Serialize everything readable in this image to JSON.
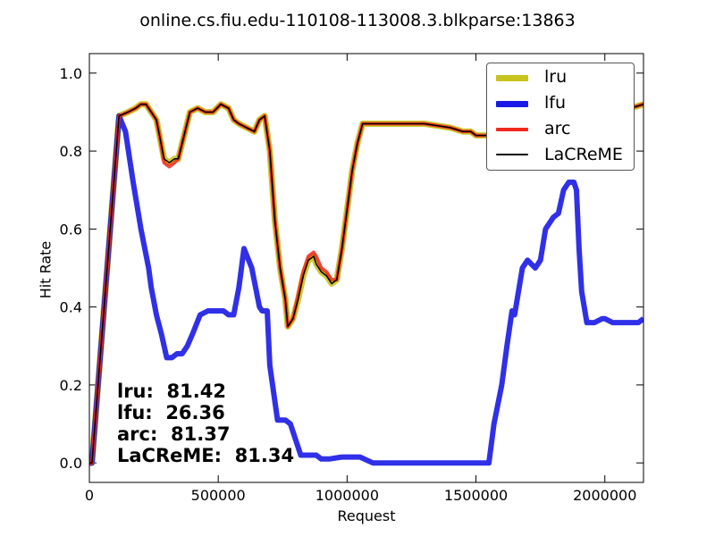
{
  "chart_data": {
    "type": "line",
    "title": "online.cs.fiu.edu-110108-113008.3.blkparse:13863",
    "xlabel": "Request",
    "ylabel": "Hit Rate",
    "xlim": [
      0,
      2150000
    ],
    "ylim": [
      -0.05,
      1.05
    ],
    "xticks": [
      0,
      500000,
      1000000,
      1500000,
      2000000
    ],
    "xtick_labels": [
      "0",
      "500000",
      "1000000",
      "1500000",
      "2000000"
    ],
    "yticks": [
      0.0,
      0.2,
      0.4,
      0.6,
      0.8,
      1.0
    ],
    "ytick_labels": [
      "0.0",
      "0.2",
      "0.4",
      "0.6",
      "0.8",
      "1.0"
    ],
    "grid": false,
    "legend_position": "top-right",
    "series": [
      {
        "name": "lru",
        "color": "#c8c31e",
        "x": [
          0,
          10000,
          115000,
          150000,
          180000,
          200000,
          220000,
          240000,
          260000,
          275000,
          290000,
          310000,
          330000,
          345000,
          360000,
          390000,
          420000,
          450000,
          480000,
          510000,
          540000,
          560000,
          580000,
          610000,
          640000,
          660000,
          680000,
          700000,
          720000,
          740000,
          760000,
          770000,
          790000,
          810000,
          830000,
          850000,
          870000,
          880000,
          900000,
          920000,
          940000,
          960000,
          980000,
          1000000,
          1020000,
          1040000,
          1060000,
          1100000,
          1200000,
          1300000,
          1400000,
          1450000,
          1480000,
          1500000,
          1520000,
          1550000,
          1600000,
          1650000,
          1700000,
          1750000,
          1800000,
          1850000,
          1900000,
          1950000,
          2000000,
          2050000,
          2100000,
          2150000
        ],
        "y": [
          0.0,
          0.0,
          0.89,
          0.9,
          0.91,
          0.92,
          0.92,
          0.9,
          0.88,
          0.83,
          0.78,
          0.77,
          0.78,
          0.78,
          0.82,
          0.9,
          0.91,
          0.9,
          0.9,
          0.92,
          0.91,
          0.88,
          0.87,
          0.86,
          0.85,
          0.88,
          0.89,
          0.8,
          0.62,
          0.5,
          0.42,
          0.35,
          0.37,
          0.42,
          0.48,
          0.52,
          0.53,
          0.51,
          0.49,
          0.48,
          0.46,
          0.47,
          0.55,
          0.65,
          0.75,
          0.82,
          0.87,
          0.87,
          0.87,
          0.87,
          0.86,
          0.85,
          0.85,
          0.84,
          0.84,
          0.84,
          0.85,
          0.88,
          0.89,
          0.9,
          0.91,
          0.91,
          0.91,
          0.91,
          0.91,
          0.91,
          0.91,
          0.92
        ]
      },
      {
        "name": "lfu",
        "color": "#1a1ae6",
        "x": [
          0,
          10000,
          115000,
          140000,
          170000,
          200000,
          230000,
          240000,
          260000,
          280000,
          300000,
          320000,
          340000,
          360000,
          380000,
          400000,
          430000,
          460000,
          490000,
          520000,
          540000,
          560000,
          580000,
          600000,
          630000,
          660000,
          670000,
          690000,
          700000,
          730000,
          760000,
          780000,
          820000,
          860000,
          880000,
          900000,
          930000,
          980000,
          1050000,
          1100000,
          1200000,
          1300000,
          1400000,
          1470000,
          1500000,
          1550000,
          1570000,
          1600000,
          1620000,
          1640000,
          1650000,
          1680000,
          1700000,
          1730000,
          1750000,
          1770000,
          1800000,
          1820000,
          1840000,
          1860000,
          1880000,
          1890000,
          1900000,
          1910000,
          1930000,
          1960000,
          1990000,
          2000000,
          2030000,
          2060000,
          2100000,
          2130000,
          2150000
        ],
        "y": [
          0.0,
          0.0,
          0.89,
          0.85,
          0.72,
          0.6,
          0.5,
          0.45,
          0.38,
          0.33,
          0.27,
          0.27,
          0.28,
          0.28,
          0.3,
          0.33,
          0.38,
          0.39,
          0.39,
          0.39,
          0.38,
          0.38,
          0.45,
          0.55,
          0.5,
          0.4,
          0.39,
          0.39,
          0.25,
          0.11,
          0.11,
          0.1,
          0.02,
          0.02,
          0.02,
          0.01,
          0.01,
          0.015,
          0.015,
          0.0,
          0.0,
          0.0,
          0.0,
          0.0,
          0.0,
          0.0,
          0.1,
          0.2,
          0.3,
          0.39,
          0.38,
          0.5,
          0.52,
          0.5,
          0.52,
          0.6,
          0.63,
          0.64,
          0.7,
          0.72,
          0.72,
          0.7,
          0.55,
          0.44,
          0.36,
          0.36,
          0.37,
          0.37,
          0.36,
          0.36,
          0.36,
          0.36,
          0.37
        ]
      },
      {
        "name": "arc",
        "color": "#f0281e",
        "x": [
          0,
          10000,
          115000,
          150000,
          180000,
          200000,
          220000,
          240000,
          260000,
          275000,
          290000,
          310000,
          330000,
          345000,
          360000,
          390000,
          420000,
          450000,
          480000,
          510000,
          540000,
          560000,
          580000,
          610000,
          640000,
          660000,
          680000,
          700000,
          720000,
          740000,
          760000,
          770000,
          790000,
          810000,
          830000,
          850000,
          870000,
          880000,
          900000,
          920000,
          940000,
          960000,
          980000,
          1000000,
          1020000,
          1040000,
          1060000,
          1100000,
          1200000,
          1300000,
          1400000,
          1450000,
          1480000,
          1500000,
          1520000,
          1550000,
          1600000,
          1650000,
          1700000,
          1750000,
          1800000,
          1850000,
          1900000,
          1950000,
          2000000,
          2050000,
          2100000,
          2150000
        ],
        "y": [
          0.0,
          0.0,
          0.89,
          0.9,
          0.91,
          0.92,
          0.92,
          0.9,
          0.88,
          0.83,
          0.77,
          0.76,
          0.77,
          0.78,
          0.82,
          0.9,
          0.91,
          0.9,
          0.9,
          0.92,
          0.91,
          0.88,
          0.87,
          0.86,
          0.85,
          0.88,
          0.89,
          0.8,
          0.62,
          0.5,
          0.42,
          0.35,
          0.37,
          0.43,
          0.49,
          0.53,
          0.54,
          0.53,
          0.5,
          0.49,
          0.47,
          0.47,
          0.55,
          0.65,
          0.75,
          0.82,
          0.87,
          0.87,
          0.87,
          0.87,
          0.86,
          0.85,
          0.85,
          0.84,
          0.84,
          0.84,
          0.85,
          0.88,
          0.89,
          0.9,
          0.91,
          0.91,
          0.91,
          0.91,
          0.91,
          0.91,
          0.91,
          0.92
        ]
      },
      {
        "name": "LaCReME",
        "color": "#000000",
        "x": [
          0,
          10000,
          115000,
          150000,
          180000,
          200000,
          220000,
          240000,
          260000,
          275000,
          290000,
          310000,
          330000,
          345000,
          360000,
          390000,
          420000,
          450000,
          480000,
          510000,
          540000,
          560000,
          580000,
          610000,
          640000,
          660000,
          680000,
          700000,
          720000,
          740000,
          760000,
          770000,
          790000,
          810000,
          830000,
          850000,
          870000,
          880000,
          900000,
          920000,
          940000,
          960000,
          980000,
          1000000,
          1020000,
          1040000,
          1060000,
          1100000,
          1200000,
          1300000,
          1400000,
          1450000,
          1480000,
          1500000,
          1520000,
          1550000,
          1600000,
          1650000,
          1700000,
          1750000,
          1800000,
          1850000,
          1900000,
          1950000,
          2000000,
          2050000,
          2100000,
          2150000
        ],
        "y": [
          0.0,
          0.0,
          0.89,
          0.9,
          0.91,
          0.92,
          0.92,
          0.9,
          0.88,
          0.83,
          0.78,
          0.77,
          0.78,
          0.78,
          0.82,
          0.9,
          0.91,
          0.9,
          0.9,
          0.92,
          0.91,
          0.88,
          0.87,
          0.86,
          0.85,
          0.88,
          0.89,
          0.8,
          0.62,
          0.5,
          0.42,
          0.35,
          0.37,
          0.42,
          0.48,
          0.52,
          0.53,
          0.51,
          0.49,
          0.48,
          0.46,
          0.47,
          0.55,
          0.65,
          0.75,
          0.82,
          0.87,
          0.87,
          0.87,
          0.87,
          0.86,
          0.85,
          0.85,
          0.84,
          0.84,
          0.84,
          0.85,
          0.88,
          0.89,
          0.9,
          0.91,
          0.91,
          0.91,
          0.91,
          0.91,
          0.91,
          0.91,
          0.92
        ]
      }
    ],
    "annotations": [
      {
        "label": "lru:",
        "value": "81.42"
      },
      {
        "label": "lfu:",
        "value": "26.36"
      },
      {
        "label": "arc:",
        "value": "81.37"
      },
      {
        "label": "LaCReME:",
        "value": "81.34"
      }
    ]
  }
}
